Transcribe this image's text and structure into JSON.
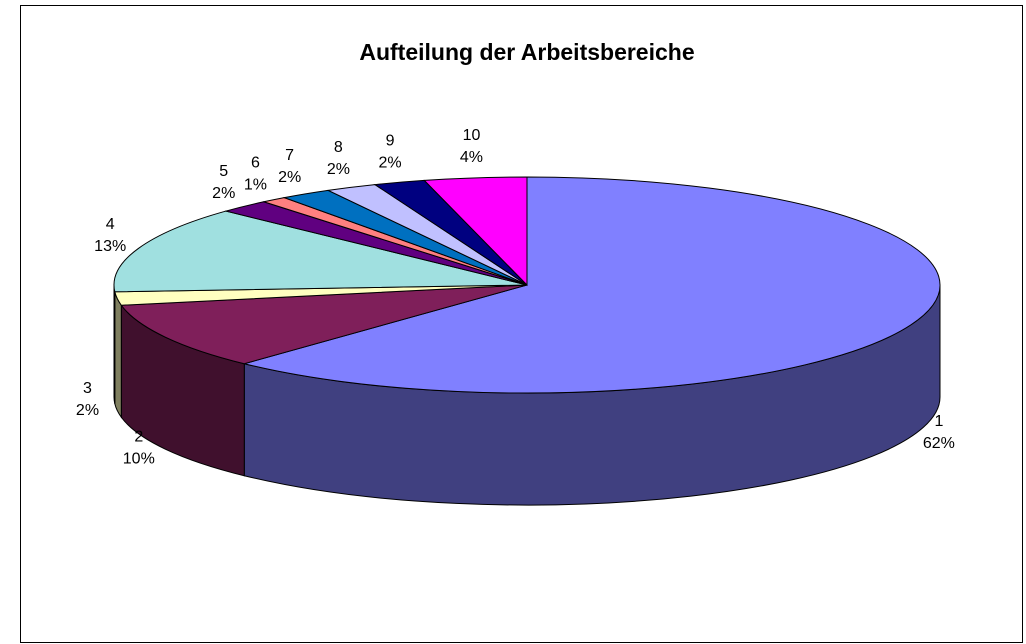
{
  "chart_data": {
    "type": "pie",
    "title": "Aufteilung der Arbeitsbereiche",
    "categories": [
      "1",
      "2",
      "3",
      "4",
      "5",
      "6",
      "7",
      "8",
      "9",
      "10"
    ],
    "values": [
      62,
      10,
      2,
      13,
      2,
      1,
      2,
      2,
      2,
      4
    ],
    "value_labels": [
      "62%",
      "10%",
      "2%",
      "13%",
      "2%",
      "1%",
      "2%",
      "2%",
      "2%",
      "4%"
    ],
    "colors": [
      "#8080ff",
      "#7f1f5a",
      "#ffffc0",
      "#a0e0e0",
      "#600080",
      "#ff8080",
      "#0070c0",
      "#c0c0ff",
      "#000080",
      "#ff00ff"
    ]
  }
}
